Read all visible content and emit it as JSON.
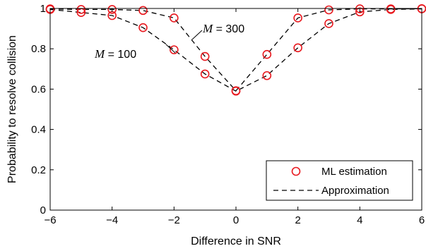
{
  "chart_data": {
    "type": "line",
    "title": "",
    "xlabel": "Difference in SNR",
    "ylabel": "Probability to resolve collision",
    "xlim": [
      -6,
      6
    ],
    "ylim": [
      0,
      1
    ],
    "xticks": [
      -6,
      -4,
      -2,
      0,
      2,
      4,
      6
    ],
    "yticks": [
      0,
      0.2,
      0.4,
      0.6,
      0.8,
      1
    ],
    "xtick_labels": [
      "−6",
      "−4",
      "−2",
      "0",
      "2",
      "4",
      "6"
    ],
    "ytick_labels": [
      "0",
      "0.2",
      "0.4",
      "0.6",
      "0.8",
      "1"
    ],
    "grid": false,
    "legend_position": "bottom-right",
    "legend": [
      {
        "label": "ML estimation",
        "marker": "circle",
        "color": "#e8191f"
      },
      {
        "label": "Approximation",
        "line": "dashed",
        "color": "#000000"
      }
    ],
    "annotations": [
      {
        "var": "M",
        "text": " = 100"
      },
      {
        "var": "M",
        "text": " = 300"
      }
    ],
    "x": [
      -6,
      -5,
      -4,
      -3,
      -2,
      -1,
      0,
      1,
      2,
      3,
      4,
      5,
      6
    ],
    "series": [
      {
        "name": "M = 100",
        "values": [
          0.995,
          0.98,
          0.965,
          0.905,
          0.795,
          0.675,
          0.59,
          0.667,
          0.805,
          0.925,
          0.983,
          0.995,
          0.998
        ]
      },
      {
        "name": "M = 300",
        "values": [
          0.998,
          0.995,
          0.995,
          0.99,
          0.953,
          0.762,
          0.592,
          0.772,
          0.953,
          0.993,
          0.998,
          0.998,
          0.999
        ]
      }
    ],
    "marker_color": "#e8191f",
    "line_color": "#000000"
  }
}
